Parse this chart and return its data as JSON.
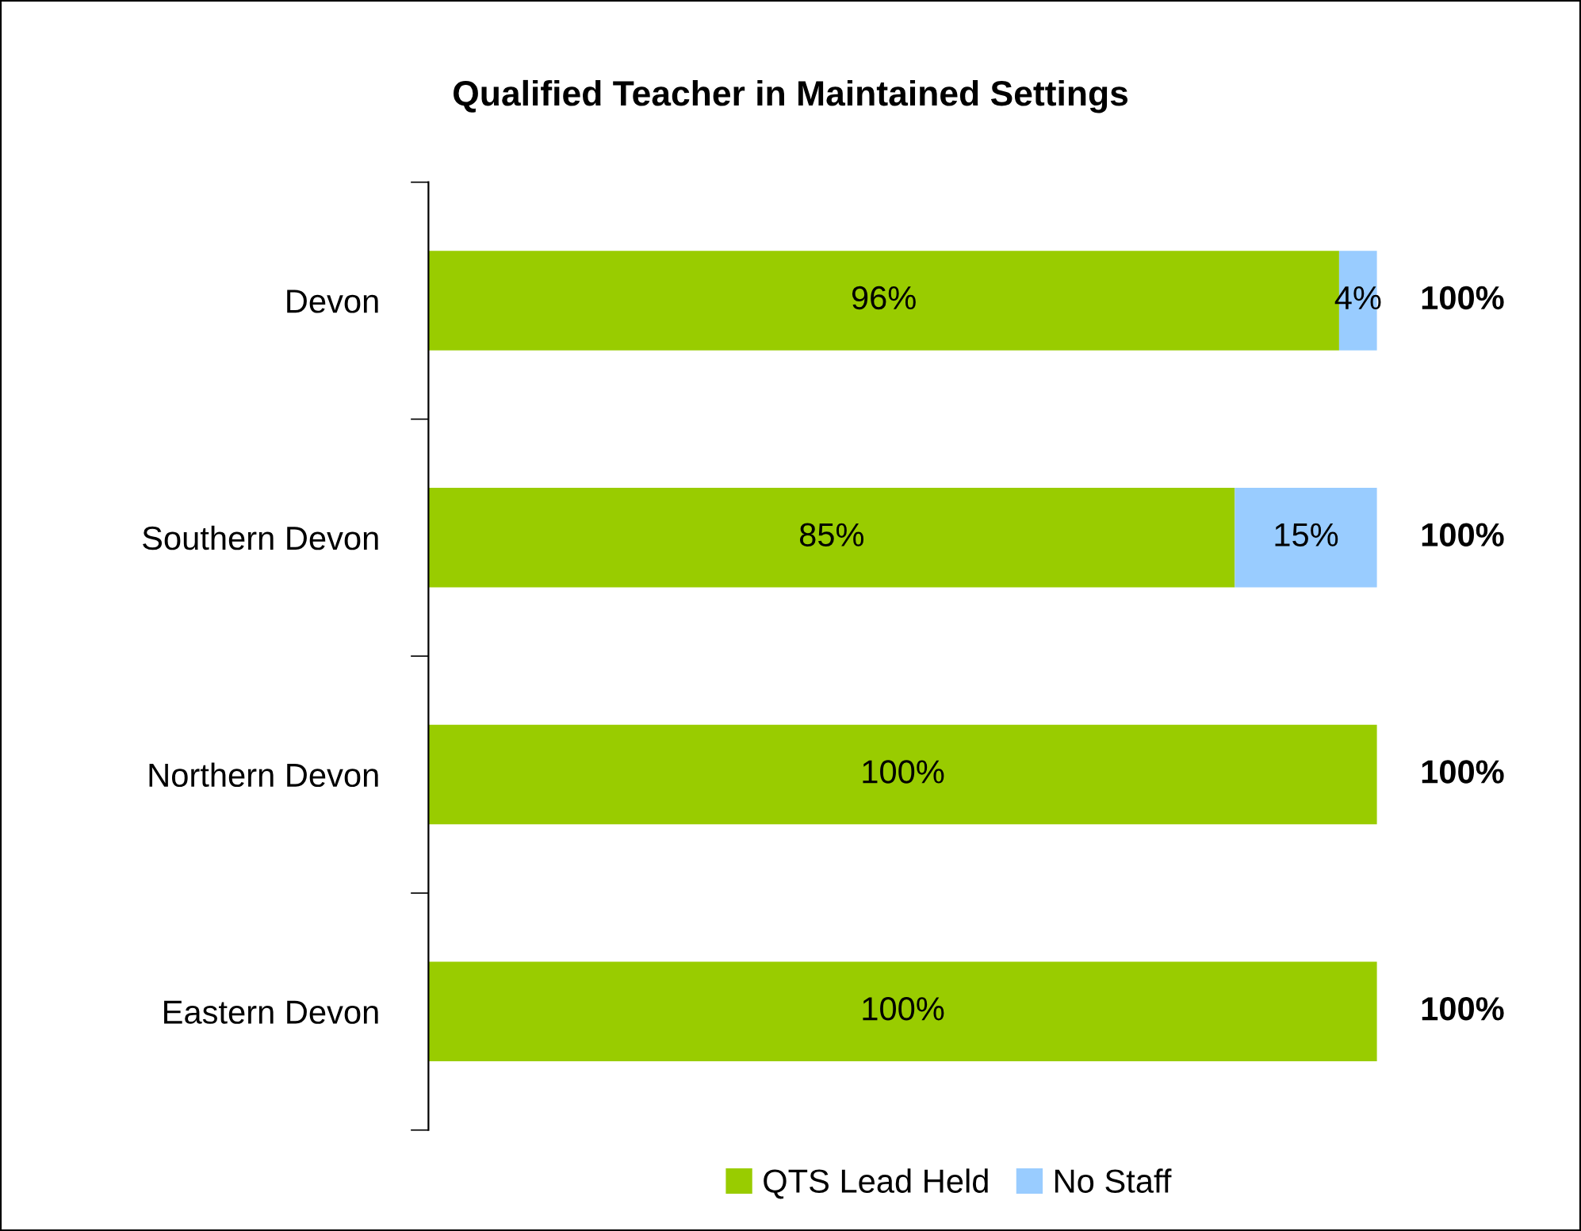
{
  "chart_data": {
    "type": "bar",
    "orientation": "horizontal",
    "stacked": true,
    "title": "Qualified Teacher in Maintained Settings",
    "categories": [
      "Devon",
      "Southern Devon",
      "Northern Devon",
      "Eastern Devon"
    ],
    "series": [
      {
        "name": "QTS Lead Held",
        "color": "#99cc00",
        "values": [
          96,
          85,
          100,
          100
        ],
        "value_labels": [
          "96%",
          "85%",
          "100%",
          "100%"
        ]
      },
      {
        "name": "No Staff",
        "color": "#99ccff",
        "values": [
          4,
          15,
          0,
          0
        ],
        "value_labels": [
          "4%",
          "15%",
          null,
          null
        ]
      }
    ],
    "totals": [
      "100%",
      "100%",
      "100%",
      "100%"
    ],
    "legend": "bottom"
  }
}
